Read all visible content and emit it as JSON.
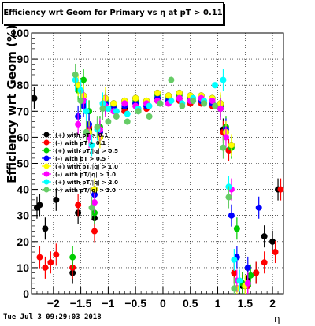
{
  "title": "Efficiency wrt Geom for Primary vs   η at pT > 0.11",
  "footer": "Tue Jul  3 09:29:03 2018",
  "chart_data": {
    "type": "scatter",
    "title": "Efficiency wrt Geom for Primary vs   η at pT > 0.11",
    "xlabel": "η",
    "ylabel": "Efficiency wrt Geom (%)",
    "xlim": [
      -2.4,
      2.2
    ],
    "ylim": [
      0,
      100
    ],
    "x_ticks": [
      "−2",
      "−1.5",
      "−1",
      "−0.5",
      "0",
      "0.5",
      "1",
      "1.5",
      "2"
    ],
    "y_ticks": [
      "0",
      "10",
      "20",
      "30",
      "40",
      "50",
      "60",
      "70",
      "80",
      "90",
      "100"
    ],
    "grid": true,
    "legend_position": "middle-left",
    "series": [
      {
        "name": "(+) with pT > 0.1",
        "color": "#000000",
        "x": [
          -2.35,
          -2.3,
          -2.25,
          -2.15,
          -1.95,
          -1.65,
          -1.55,
          -1.45,
          -1.35,
          -1.25,
          -1.15,
          -1.05,
          -0.9,
          -0.7,
          -0.5,
          -0.3,
          -0.1,
          0.1,
          0.3,
          0.5,
          0.7,
          0.9,
          1.05,
          1.1,
          1.2,
          1.3,
          1.45,
          1.55,
          1.7,
          1.85,
          2.0,
          2.1
        ],
        "y": [
          75,
          33,
          34,
          25,
          36,
          8,
          31,
          74,
          63,
          29,
          62,
          73,
          72,
          71,
          73,
          72,
          75,
          74,
          75,
          74,
          74,
          73,
          72,
          63,
          55,
          8,
          3,
          6,
          8,
          22,
          20,
          40
        ]
      },
      {
        "name": "(-) with pT > 0.1",
        "color": "#ff0000",
        "x": [
          -2.25,
          -2.15,
          -2.05,
          -1.95,
          -1.65,
          -1.55,
          -1.45,
          -1.35,
          -1.25,
          -1.15,
          -1.05,
          -0.9,
          -0.7,
          -0.5,
          -0.3,
          -0.1,
          0.1,
          0.3,
          0.5,
          0.7,
          0.9,
          1.05,
          1.1,
          1.2,
          1.3,
          1.45,
          1.55,
          1.7,
          1.85,
          2.05,
          2.15
        ],
        "y": [
          14,
          10,
          12,
          15,
          10,
          34,
          73,
          64,
          24,
          62,
          72,
          71,
          70,
          72,
          71,
          74,
          73,
          74,
          73,
          73,
          72,
          71,
          62,
          55,
          8,
          4,
          3,
          8,
          12,
          16,
          40
        ]
      },
      {
        "name": "(+) with pT/|q| > 0.5",
        "color": "#00cc00",
        "x": [
          -1.65,
          -1.55,
          -1.45,
          -1.35,
          -1.25,
          -1.15,
          -1.05,
          -0.9,
          -0.7,
          -0.5,
          -0.3,
          -0.1,
          0.1,
          0.3,
          0.5,
          0.7,
          0.9,
          1.05,
          1.15,
          1.25,
          1.35,
          1.45,
          1.6
        ],
        "y": [
          14,
          78,
          82,
          70,
          31,
          64,
          74,
          72,
          73,
          74,
          73,
          76,
          75,
          76,
          75,
          75,
          74,
          72,
          64,
          56,
          25,
          4,
          7
        ]
      },
      {
        "name": "(-) with pT > 0.5",
        "color": "#0000ff",
        "x": [
          -1.55,
          -1.45,
          -1.35,
          -1.25,
          -1.15,
          -1.05,
          -0.9,
          -0.7,
          -0.5,
          -0.3,
          -0.1,
          0.1,
          0.3,
          0.5,
          0.7,
          0.9,
          1.05,
          1.15,
          1.25,
          1.35,
          1.55,
          1.75
        ],
        "y": [
          68,
          72,
          65,
          38,
          62,
          73,
          71,
          72,
          73,
          72,
          75,
          74,
          75,
          74,
          74,
          73,
          71,
          63,
          30,
          14,
          10,
          33
        ]
      },
      {
        "name": "(+) with pT/|q| > 1.0",
        "color": "#ffff00",
        "x": [
          -1.55,
          -1.45,
          -1.35,
          -1.25,
          -1.15,
          -1.05,
          -0.9,
          -0.7,
          -0.5,
          -0.3,
          -0.1,
          0.1,
          0.3,
          0.5,
          0.7,
          0.9,
          1.05,
          1.15,
          1.25,
          1.35,
          1.5
        ],
        "y": [
          80,
          76,
          62,
          40,
          60,
          75,
          73,
          74,
          75,
          74,
          77,
          76,
          77,
          76,
          76,
          75,
          73,
          62,
          57,
          2,
          3
        ]
      },
      {
        "name": "(-) with pT/|q| > 1.0",
        "color": "#ff00ff",
        "x": [
          -1.55,
          -1.45,
          -1.35,
          -1.25,
          -1.15,
          -1.05,
          -0.9,
          -0.7,
          -0.5,
          -0.3,
          -0.1,
          0.1,
          0.3,
          0.5,
          0.7,
          0.9,
          1.05,
          1.15,
          1.25,
          1.35,
          1.55
        ],
        "y": [
          65,
          74,
          60,
          35,
          63,
          72,
          70,
          73,
          72,
          73,
          74,
          73,
          75,
          74,
          75,
          74,
          71,
          60,
          40,
          5,
          4
        ]
      },
      {
        "name": "(+) with pT/|q| > 2.0",
        "color": "#00ffff",
        "x": [
          -1.6,
          -1.5,
          -1.4,
          -1.3,
          -1.2,
          -1.1,
          -1.0,
          -0.85,
          -0.65,
          -0.45,
          -0.25,
          -0.05,
          0.15,
          0.35,
          0.55,
          0.75,
          0.95,
          1.1,
          1.2,
          1.3,
          1.4
        ],
        "y": [
          82,
          78,
          70,
          57,
          63,
          73,
          71,
          70,
          69,
          71,
          72,
          73,
          74,
          73,
          75,
          74,
          80,
          82,
          41,
          13,
          5
        ]
      },
      {
        "name": "(-) with pT/|q| > 2.0",
        "color": "#66cc66",
        "x": [
          -1.6,
          -1.5,
          -1.4,
          -1.3,
          -1.2,
          -1.1,
          -1.0,
          -0.85,
          -0.65,
          -0.45,
          -0.25,
          -0.05,
          0.15,
          0.35,
          0.55,
          0.75,
          0.95,
          1.1,
          1.2,
          1.3
        ],
        "y": [
          84,
          74,
          62,
          33,
          64,
          71,
          66,
          68,
          66,
          70,
          68,
          73,
          82,
          72,
          74,
          73,
          72,
          56,
          37,
          2
        ]
      }
    ]
  }
}
